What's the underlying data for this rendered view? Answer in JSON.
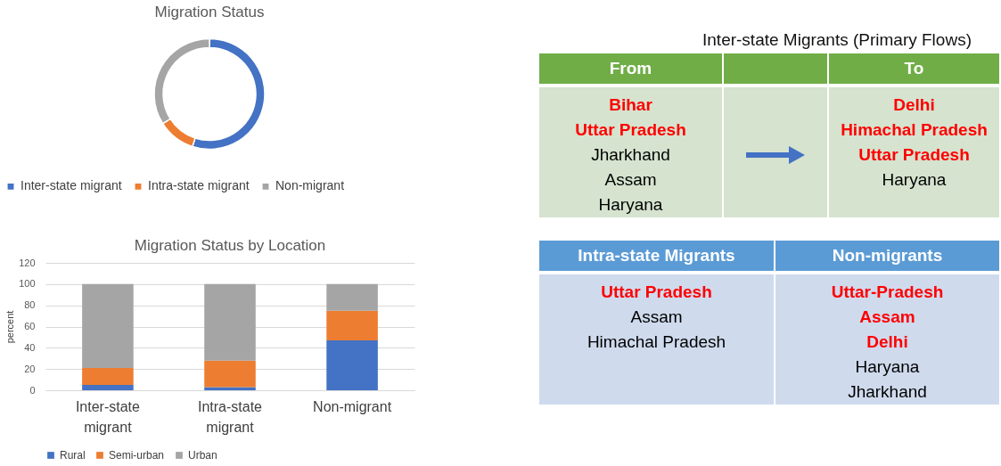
{
  "chart_data": [
    {
      "type": "donut",
      "title": "Migration Status",
      "categories": [
        "Inter-state migrant",
        "Intra-state migrant",
        "Non-migrant"
      ],
      "values": [
        55,
        11,
        34
      ],
      "colors": [
        "#4472c4",
        "#ed7d31",
        "#a5a5a5"
      ],
      "legend": "bottom"
    },
    {
      "type": "bar",
      "title": "Migration Status by Location",
      "categories": [
        "Inter-state migrant",
        "Intra-state migrant",
        "Non-migrant"
      ],
      "stacked": true,
      "ylabel": "percent",
      "ylim": [
        0,
        120
      ],
      "yticks": [
        0,
        20,
        40,
        60,
        80,
        100,
        120
      ],
      "grid": "y",
      "legend": "bottom",
      "series": [
        {
          "name": "Rural",
          "color": "#4472c4",
          "values": [
            5,
            3,
            47
          ]
        },
        {
          "name": "Semi-urban",
          "color": "#ed7d31",
          "values": [
            16,
            25,
            28
          ]
        },
        {
          "name": "Urban",
          "color": "#a5a5a5",
          "values": [
            79,
            72,
            25
          ]
        }
      ]
    },
    {
      "type": "other",
      "title": "Inter-state Migrants (Primary Flows)",
      "categories": [
        "From",
        null,
        "To"
      ],
      "annotations": [
        "Bihar\nUttar Pradesh\nJharkhand\nAssam\nHaryana",
        "Delhi\nHimachal Pradesh\nUttar Pradesh\nHaryana"
      ]
    },
    {
      "type": "other",
      "categories": [
        "Intra-state Migrants",
        "Non-migrants"
      ],
      "annotations": [
        "Uttar Pradesh\nAssam\nHimachal Pradesh",
        "Uttar-Pradesh\nAssam\nDelhi\nHaryana\nJharkhand"
      ]
    }
  ]
}
